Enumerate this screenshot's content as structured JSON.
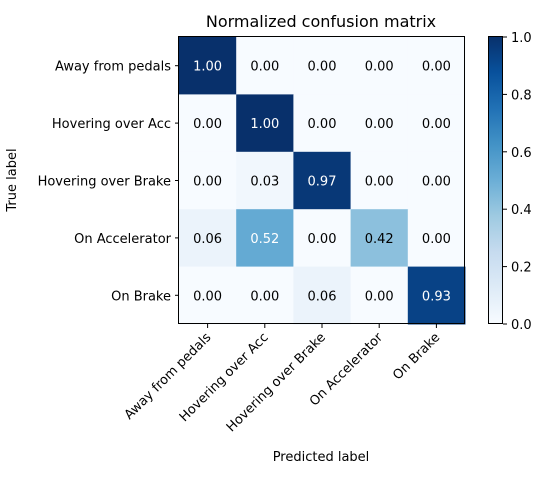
{
  "chart_data": {
    "type": "heatmap",
    "title": "Normalized confusion matrix",
    "xlabel": "Predicted label",
    "ylabel": "True label",
    "categories": [
      "Away from pedals",
      "Hovering over Acc",
      "Hovering over Brake",
      "On Accelerator",
      "On Brake"
    ],
    "matrix": [
      [
        1.0,
        0.0,
        0.0,
        0.0,
        0.0
      ],
      [
        0.0,
        1.0,
        0.0,
        0.0,
        0.0
      ],
      [
        0.0,
        0.03,
        0.97,
        0.0,
        0.0
      ],
      [
        0.06,
        0.52,
        0.0,
        0.42,
        0.0
      ],
      [
        0.0,
        0.0,
        0.06,
        0.0,
        0.93
      ]
    ],
    "colormap": "Blues",
    "vmin": 0.0,
    "vmax": 1.0,
    "colorbar_ticks": [
      0.0,
      0.2,
      0.4,
      0.6,
      0.8,
      1.0
    ],
    "value_format": "2 decimals"
  }
}
